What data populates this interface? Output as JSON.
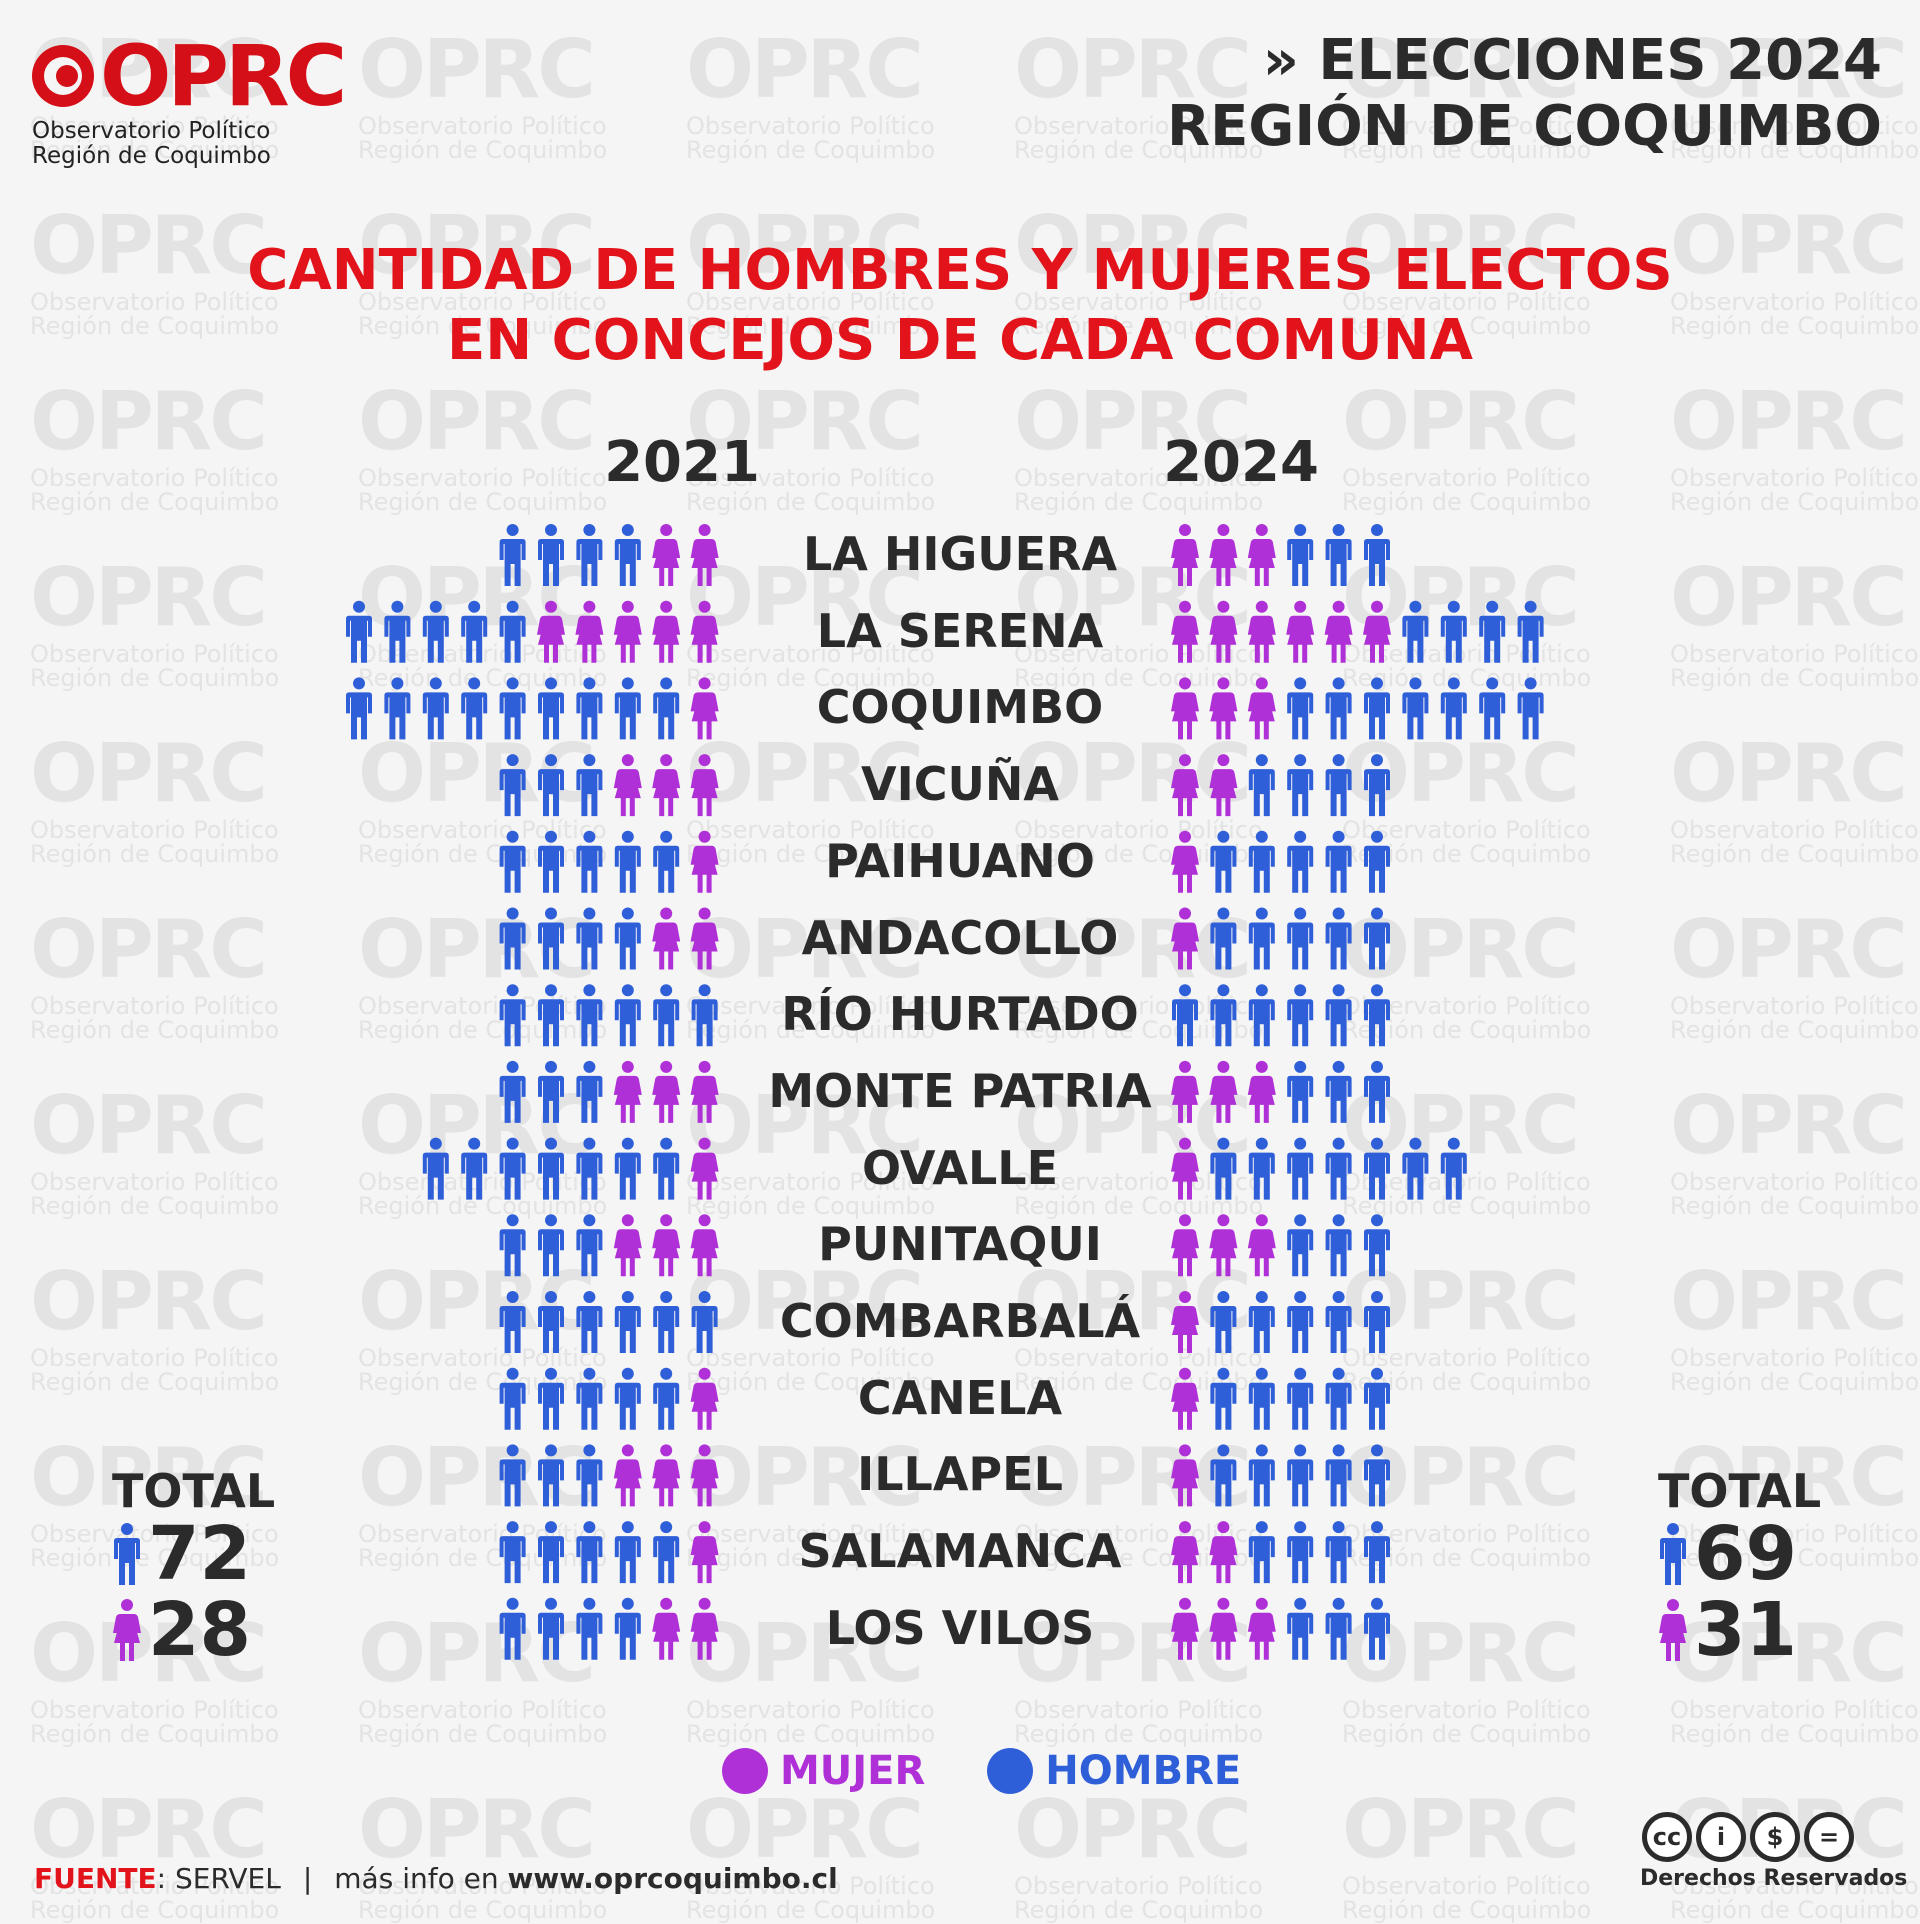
{
  "brand": {
    "logo_text": "OPRC",
    "logo_sub_line1": "Observatorio Político",
    "logo_sub_line2": "Región de Coquimbo",
    "accent_color": "#d50f17"
  },
  "header": {
    "line1": "» ELECCIONES 2024",
    "line2": "REGIÓN DE COQUIMBO"
  },
  "title": {
    "line1": "CANTIDAD DE HOMBRES Y MUJERES ELECTOS",
    "line2": "EN CONCEJOS DE CADA COMUNA"
  },
  "chart_data": {
    "type": "table",
    "years": [
      "2021",
      "2024"
    ],
    "colors": {
      "mujer": "#b030d8",
      "hombre": "#2f5fd8"
    },
    "rows": [
      {
        "comuna": "LA HIGUERA",
        "y2021": {
          "hombres": 4,
          "mujeres": 2
        },
        "y2024": {
          "mujeres": 3,
          "hombres": 3
        }
      },
      {
        "comuna": "LA SERENA",
        "y2021": {
          "hombres": 5,
          "mujeres": 5
        },
        "y2024": {
          "mujeres": 6,
          "hombres": 4
        }
      },
      {
        "comuna": "COQUIMBO",
        "y2021": {
          "hombres": 9,
          "mujeres": 1
        },
        "y2024": {
          "mujeres": 3,
          "hombres": 7
        }
      },
      {
        "comuna": "VICUÑA",
        "y2021": {
          "hombres": 3,
          "mujeres": 3
        },
        "y2024": {
          "mujeres": 2,
          "hombres": 4
        }
      },
      {
        "comuna": "PAIHUANO",
        "y2021": {
          "hombres": 5,
          "mujeres": 1
        },
        "y2024": {
          "mujeres": 1,
          "hombres": 5
        }
      },
      {
        "comuna": "ANDACOLLO",
        "y2021": {
          "hombres": 4,
          "mujeres": 2
        },
        "y2024": {
          "mujeres": 1,
          "hombres": 5
        }
      },
      {
        "comuna": "RÍO HURTADO",
        "y2021": {
          "hombres": 6,
          "mujeres": 0
        },
        "y2024": {
          "mujeres": 0,
          "hombres": 6
        }
      },
      {
        "comuna": "MONTE PATRIA",
        "y2021": {
          "hombres": 3,
          "mujeres": 3
        },
        "y2024": {
          "mujeres": 3,
          "hombres": 3
        }
      },
      {
        "comuna": "OVALLE",
        "y2021": {
          "hombres": 7,
          "mujeres": 1
        },
        "y2024": {
          "mujeres": 1,
          "hombres": 7
        }
      },
      {
        "comuna": "PUNITAQUI",
        "y2021": {
          "hombres": 3,
          "mujeres": 3
        },
        "y2024": {
          "mujeres": 3,
          "hombres": 3
        }
      },
      {
        "comuna": "COMBARBALÁ",
        "y2021": {
          "hombres": 6,
          "mujeres": 0
        },
        "y2024": {
          "mujeres": 1,
          "hombres": 5
        }
      },
      {
        "comuna": "CANELA",
        "y2021": {
          "hombres": 5,
          "mujeres": 1
        },
        "y2024": {
          "mujeres": 1,
          "hombres": 5
        }
      },
      {
        "comuna": "ILLAPEL",
        "y2021": {
          "hombres": 3,
          "mujeres": 3
        },
        "y2024": {
          "mujeres": 1,
          "hombres": 5
        }
      },
      {
        "comuna": "SALAMANCA",
        "y2021": {
          "hombres": 5,
          "mujeres": 1
        },
        "y2024": {
          "mujeres": 2,
          "hombres": 4
        }
      },
      {
        "comuna": "LOS VILOS",
        "y2021": {
          "hombres": 4,
          "mujeres": 2
        },
        "y2024": {
          "mujeres": 3,
          "hombres": 3
        }
      }
    ],
    "totals": {
      "label": "TOTAL",
      "y2021": {
        "hombres": "72",
        "mujeres": "28"
      },
      "y2024": {
        "hombres": "69",
        "mujeres": "31"
      }
    },
    "legend": {
      "mujer": "MUJER",
      "hombre": "HOMBRE"
    }
  },
  "footer": {
    "source_label": "FUENTE",
    "source_value": ": SERVEL",
    "separator": "|",
    "more_info": "más info en ",
    "url": "www.oprcoquimbo.cl"
  },
  "license": {
    "icons": [
      "cc-icon",
      "by-icon",
      "nc-icon",
      "nd-icon"
    ],
    "cc": "cc",
    "by": "i",
    "nc": "$",
    "nd": "=",
    "rights": "Derechos Reservados"
  }
}
